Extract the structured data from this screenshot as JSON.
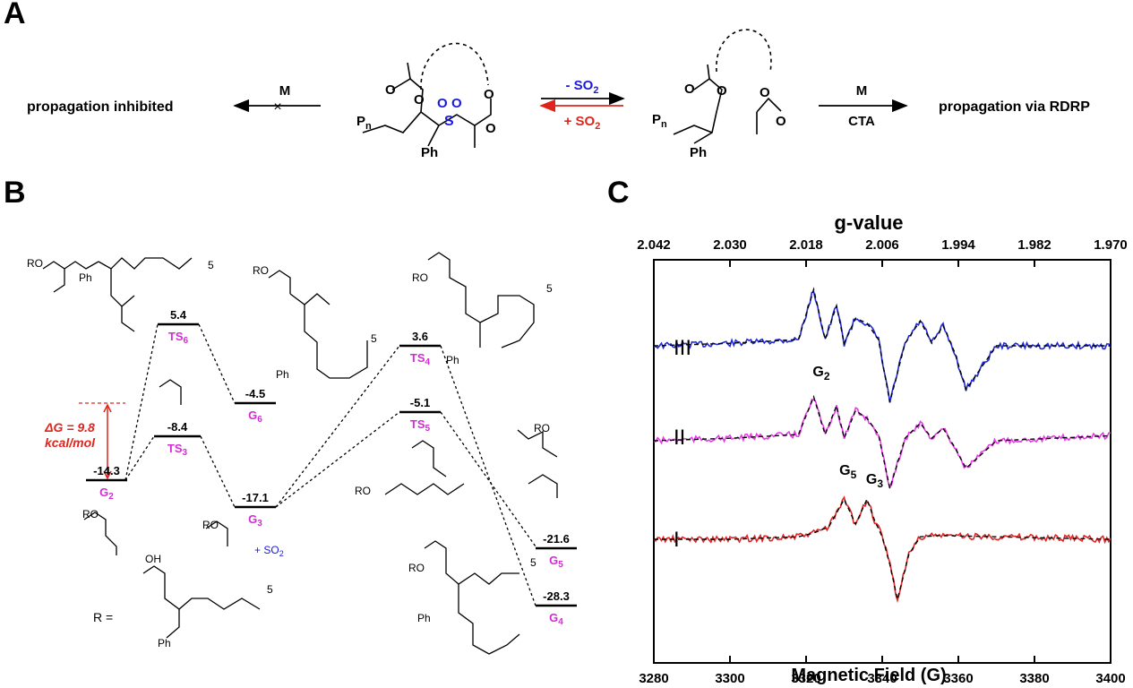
{
  "panels": {
    "A": "A",
    "B": "B",
    "C": "C"
  },
  "scheme_a": {
    "left_text": "propagation inhibited",
    "left_arrow_label": "M",
    "forward_label": "- SO",
    "forward_sub": "2",
    "reverse_label": "+ SO",
    "reverse_sub": "2",
    "right_arrow_top": "M",
    "right_arrow_bottom": "CTA",
    "right_text": "propagation via RDRP",
    "pn": "P",
    "pn_sub": "n",
    "ph": "Ph",
    "s": "S",
    "o": "O",
    "colors": {
      "so2_blue": "#1a1adc",
      "red": "#e0241c"
    }
  },
  "energy_diagram": {
    "levels": [
      {
        "id": "G2",
        "value": "-14.3",
        "label": "G",
        "sub": "2"
      },
      {
        "id": "TS6",
        "value": "5.4",
        "label": "TS",
        "sub": "6"
      },
      {
        "id": "TS3",
        "value": "-8.4",
        "label": "TS",
        "sub": "3"
      },
      {
        "id": "G6",
        "value": "-4.5",
        "label": "G",
        "sub": "6"
      },
      {
        "id": "G3",
        "value": "-17.1",
        "label": "G",
        "sub": "3"
      },
      {
        "id": "TS4",
        "value": "3.6",
        "label": "TS",
        "sub": "4"
      },
      {
        "id": "TS5",
        "value": "-5.1",
        "label": "TS",
        "sub": "5"
      },
      {
        "id": "G5",
        "value": "-21.6",
        "label": "G",
        "sub": "5"
      },
      {
        "id": "G4",
        "value": "-28.3",
        "label": "G",
        "sub": "4"
      }
    ],
    "delta_g_line1": "ΔG = 9.8",
    "delta_g_line2": "kcal/mol",
    "so2_text": "+ SO",
    "so2_sub": "2",
    "r_definition": "R  =",
    "ro": "RO",
    "ph": "Ph",
    "oh": "OH",
    "five": "5",
    "colors": {
      "label": "#d52ad5",
      "red": "#e0241c",
      "blue": "#1a1adc"
    }
  },
  "chart_data": {
    "type": "line",
    "title": "",
    "xlabel": "Magnetic Field (G)",
    "x2label": "g-value",
    "xlim": [
      3280,
      3400
    ],
    "x_ticks": [
      "3280",
      "3300",
      "3320",
      "3340",
      "3360",
      "3380",
      "3400"
    ],
    "g_ticks": [
      "2.042",
      "2.030",
      "2.018",
      "2.006",
      "1.994",
      "1.982",
      "1.970"
    ],
    "curve_labels": [
      "III",
      "II",
      "I"
    ],
    "annotations": [
      {
        "text": "G",
        "sub": "2",
        "x": 3324
      },
      {
        "text": "G",
        "sub": "5",
        "x": 3331
      },
      {
        "text": "G",
        "sub": "3",
        "x": 3338
      }
    ],
    "series": [
      {
        "color": "#1f2ad6",
        "offset": 0.62,
        "x": [
          3280,
          3300,
          3318,
          3322,
          3325,
          3328,
          3330,
          3333,
          3336,
          3339,
          3342,
          3346,
          3350,
          3353,
          3356,
          3359,
          3362,
          3370,
          3400
        ],
        "y": [
          0,
          0.02,
          0.05,
          0.45,
          0.05,
          0.32,
          0.02,
          0.22,
          0.18,
          0.05,
          -0.45,
          0.02,
          0.2,
          0.02,
          0.16,
          -0.05,
          -0.35,
          0.0,
          0.0
        ]
      },
      {
        "color": "#e63be6",
        "offset": 0.32,
        "x": [
          3280,
          3300,
          3318,
          3322,
          3325,
          3328,
          3330,
          3333,
          3336,
          3339,
          3342,
          3346,
          3350,
          3353,
          3356,
          3359,
          3362,
          3370,
          3400
        ],
        "y": [
          0,
          0.02,
          0.05,
          0.35,
          0.05,
          0.28,
          0.02,
          0.24,
          0.18,
          0.05,
          -0.38,
          0.02,
          0.14,
          0.02,
          0.1,
          -0.05,
          -0.22,
          0.0,
          0.04
        ]
      },
      {
        "color": "#e02525",
        "offset": 0.0,
        "x": [
          3280,
          3300,
          3318,
          3322,
          3326,
          3330,
          3333,
          3336,
          3338,
          3340,
          3342,
          3344,
          3347,
          3350,
          3355,
          3370,
          3400
        ],
        "y": [
          0,
          0.0,
          0.02,
          0.05,
          0.1,
          0.32,
          0.12,
          0.32,
          0.15,
          0.02,
          -0.2,
          -0.48,
          -0.12,
          0.02,
          0.03,
          0.02,
          0.0
        ]
      }
    ]
  }
}
